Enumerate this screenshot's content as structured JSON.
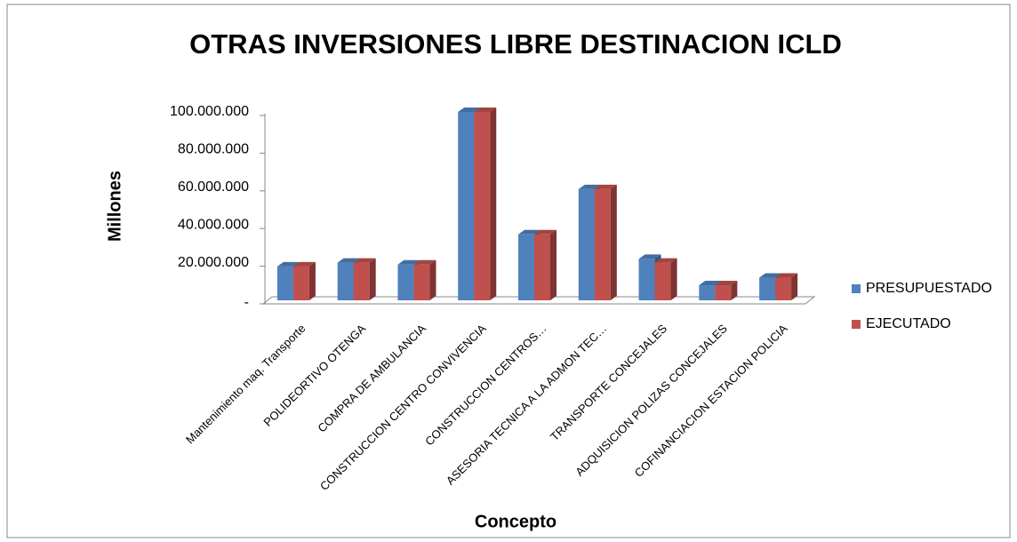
{
  "chart_data": {
    "type": "bar3d",
    "title": "OTRAS INVERSIONES LIBRE DESTINACION ICLD",
    "y_label": "Millones",
    "x_label": "Concepto",
    "categories": [
      "Mantenimiento maq. Transporte",
      "POLIDEORTIVO OTENGA",
      "COMPRA DE AMBULANCIA",
      "CONSTRUCCION CENTRO CONVIVENCIA",
      "CONSTRUCCION CENTROS…",
      "ASESORIA TECNICA A LA ADMON  TEC…",
      "TRANSPORTE CONCEJALES",
      "ADQUISICION POLIZAS CONCEJALES",
      "COFINANCIACION ESTACION POLICIA"
    ],
    "series": [
      {
        "name": "PRESUPUESTADO",
        "color": "#4f81bd",
        "values": [
          18000000,
          20000000,
          19000000,
          100000000,
          35000000,
          59000000,
          22000000,
          8000000,
          12000000
        ]
      },
      {
        "name": "EJECUTADO",
        "color": "#c0504d",
        "values": [
          18000000,
          20000000,
          19000000,
          100000000,
          35000000,
          59000000,
          20000000,
          8000000,
          12000000
        ]
      }
    ],
    "ylim": [
      0,
      100000000
    ],
    "yticks": [
      {
        "value": 0,
        "label": "-"
      },
      {
        "value": 20000000,
        "label": "20.000.000"
      },
      {
        "value": 40000000,
        "label": "40.000.000"
      },
      {
        "value": 60000000,
        "label": "60.000.000"
      },
      {
        "value": 80000000,
        "label": "80.000.000"
      },
      {
        "value": 100000000,
        "label": "100.000.000"
      }
    ],
    "legend": "right"
  }
}
